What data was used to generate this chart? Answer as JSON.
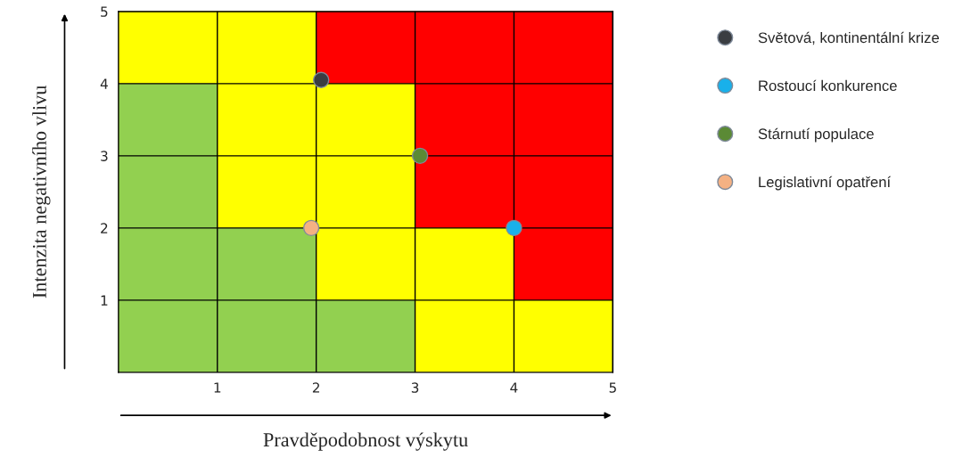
{
  "chart_data": {
    "type": "scatter",
    "xlabel": "Pravděpodobnost výskytu",
    "ylabel": "Intenzita negativního vlivu",
    "xlim": [
      0,
      5
    ],
    "ylim": [
      0,
      5
    ],
    "xticks": [
      1,
      2,
      3,
      4,
      5
    ],
    "yticks": [
      1,
      2,
      3,
      4,
      5
    ],
    "grid": true,
    "legend": "right",
    "marker": "circle",
    "series": [
      {
        "name": "Světová, kontinentální krize",
        "color": "#3a3d42",
        "x": [
          2.05
        ],
        "values": [
          4.05
        ]
      },
      {
        "name": "Rostoucí konkurence",
        "color": "#19b0ea",
        "x": [
          4
        ],
        "values": [
          2
        ]
      },
      {
        "name": "Stárnutí populace",
        "color": "#5b8a35",
        "x": [
          3.05
        ],
        "values": [
          3
        ]
      },
      {
        "name": "Legislativní opatření",
        "color": "#f4b183",
        "x": [
          1.95
        ],
        "values": [
          2
        ]
      }
    ]
  }
}
